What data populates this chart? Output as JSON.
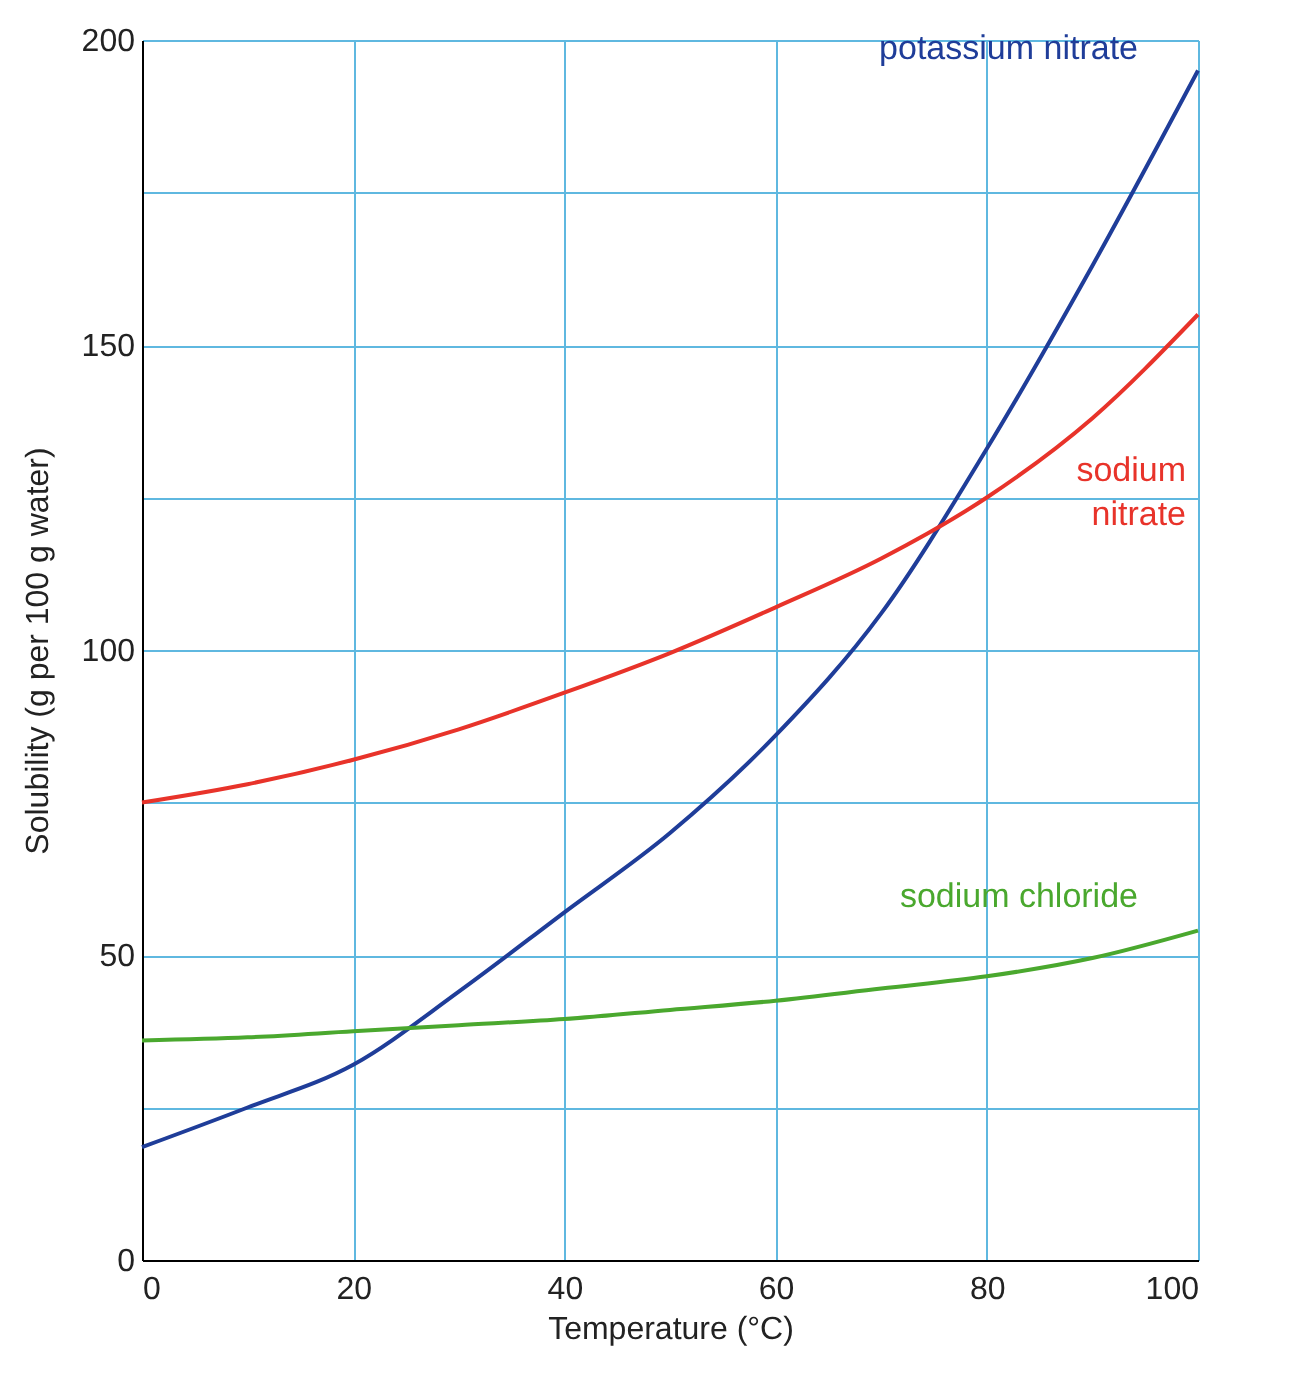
{
  "chart_data": {
    "type": "line",
    "xlabel": "Temperature (°C)",
    "ylabel": "Solubility (g per 100 g water)",
    "x": [
      0,
      10,
      20,
      30,
      40,
      50,
      60,
      70,
      80,
      90,
      100
    ],
    "series": [
      {
        "name": "potassium nitrate",
        "color": "#1f3d99",
        "values": [
          18.5,
          25,
          32,
          44,
          57,
          70,
          86,
          106,
          133,
          163,
          195
        ]
      },
      {
        "name": "sodium nitrate",
        "color": "#e8332a",
        "values": [
          75,
          78,
          82,
          87,
          93,
          99.5,
          107,
          115,
          125,
          138,
          155
        ]
      },
      {
        "name": "sodium chloride",
        "color": "#4aa82e",
        "values": [
          36,
          36.5,
          37.5,
          38.5,
          39.5,
          41,
          42.5,
          44.5,
          46.5,
          49.5,
          54
        ]
      }
    ],
    "xlim": [
      0,
      100
    ],
    "ylim": [
      0,
      200
    ],
    "xticks": [
      0,
      20,
      40,
      60,
      80,
      100
    ],
    "yticks": [
      0,
      {
        "value": 25,
        "label": null
      },
      50,
      {
        "value": 75,
        "label": null
      },
      100,
      {
        "value": 125,
        "label": null
      },
      150,
      {
        "value": 175,
        "label": null
      },
      200
    ],
    "grid": true,
    "marker": "none",
    "line_style": "solid"
  }
}
